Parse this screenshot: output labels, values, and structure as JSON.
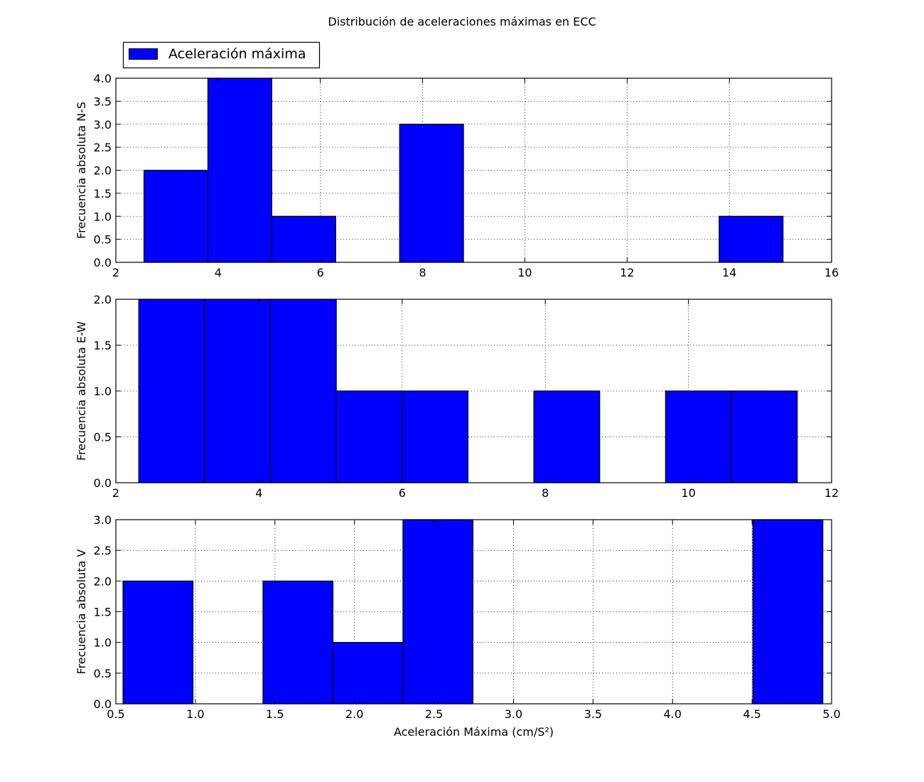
{
  "title": "Distribución de aceleraciones máximas en ECC",
  "legend": {
    "label": "Aceleración máxima",
    "placement": "top-left, above first subplot"
  },
  "colors": {
    "bar_fill": "#0000ff",
    "bar_edge": "#000000",
    "grid": "#000000",
    "background": "#ffffff"
  },
  "chart_data": [
    {
      "type": "bar",
      "subtype": "histogram",
      "ylabel": "Frecuencia absoluta N-S",
      "xlabel": "",
      "xlim": [
        2,
        16
      ],
      "ylim": [
        0,
        4
      ],
      "xticks": [
        "2",
        "4",
        "6",
        "8",
        "10",
        "12",
        "14",
        "16"
      ],
      "yticks": [
        "0.0",
        "0.5",
        "1.0",
        "1.5",
        "2.0",
        "2.5",
        "3.0",
        "3.5",
        "4.0"
      ],
      "grid": true,
      "bins": [
        {
          "x0": 2.55,
          "x1": 3.8,
          "count": 2
        },
        {
          "x0": 3.8,
          "x1": 5.05,
          "count": 4
        },
        {
          "x0": 5.05,
          "x1": 6.3,
          "count": 1
        },
        {
          "x0": 6.3,
          "x1": 7.55,
          "count": 0
        },
        {
          "x0": 7.55,
          "x1": 8.8,
          "count": 3
        },
        {
          "x0": 8.8,
          "x1": 10.05,
          "count": 0
        },
        {
          "x0": 10.05,
          "x1": 11.3,
          "count": 0
        },
        {
          "x0": 11.3,
          "x1": 12.55,
          "count": 0
        },
        {
          "x0": 12.55,
          "x1": 13.8,
          "count": 0
        },
        {
          "x0": 13.8,
          "x1": 15.05,
          "count": 1
        }
      ]
    },
    {
      "type": "bar",
      "subtype": "histogram",
      "ylabel": "Frecuencia absoluta E-W",
      "xlabel": "",
      "xlim": [
        2,
        12
      ],
      "ylim": [
        0,
        2
      ],
      "xticks": [
        "2",
        "4",
        "6",
        "8",
        "10",
        "12"
      ],
      "yticks": [
        "0.0",
        "0.5",
        "1.0",
        "1.5",
        "2.0"
      ],
      "grid": true,
      "bins": [
        {
          "x0": 2.32,
          "x1": 3.24,
          "count": 2
        },
        {
          "x0": 3.24,
          "x1": 4.16,
          "count": 2
        },
        {
          "x0": 4.16,
          "x1": 5.08,
          "count": 2
        },
        {
          "x0": 5.08,
          "x1": 6.0,
          "count": 1
        },
        {
          "x0": 6.0,
          "x1": 6.92,
          "count": 1
        },
        {
          "x0": 6.92,
          "x1": 7.84,
          "count": 0
        },
        {
          "x0": 7.84,
          "x1": 8.76,
          "count": 1
        },
        {
          "x0": 8.76,
          "x1": 9.68,
          "count": 0
        },
        {
          "x0": 9.68,
          "x1": 10.6,
          "count": 1
        },
        {
          "x0": 10.6,
          "x1": 11.52,
          "count": 1
        }
      ]
    },
    {
      "type": "bar",
      "subtype": "histogram",
      "ylabel": "Frecuencia absoluta V",
      "xlabel": "Aceleración Máxima (cm/S²)",
      "xlim": [
        0.5,
        5.0
      ],
      "ylim": [
        0,
        3
      ],
      "xticks": [
        "0.5",
        "1.0",
        "1.5",
        "2.0",
        "2.5",
        "3.0",
        "3.5",
        "4.0",
        "4.5",
        "5.0"
      ],
      "yticks": [
        "0.0",
        "0.5",
        "1.0",
        "1.5",
        "2.0",
        "2.5",
        "3.0"
      ],
      "grid": true,
      "bins": [
        {
          "x0": 0.545,
          "x1": 0.985,
          "count": 2
        },
        {
          "x0": 0.985,
          "x1": 1.425,
          "count": 0
        },
        {
          "x0": 1.425,
          "x1": 1.865,
          "count": 2
        },
        {
          "x0": 1.865,
          "x1": 2.305,
          "count": 1
        },
        {
          "x0": 2.305,
          "x1": 2.745,
          "count": 3
        },
        {
          "x0": 2.745,
          "x1": 3.185,
          "count": 0
        },
        {
          "x0": 3.185,
          "x1": 3.625,
          "count": 0
        },
        {
          "x0": 3.625,
          "x1": 4.065,
          "count": 0
        },
        {
          "x0": 4.065,
          "x1": 4.505,
          "count": 0
        },
        {
          "x0": 4.505,
          "x1": 4.945,
          "count": 3
        }
      ]
    }
  ]
}
